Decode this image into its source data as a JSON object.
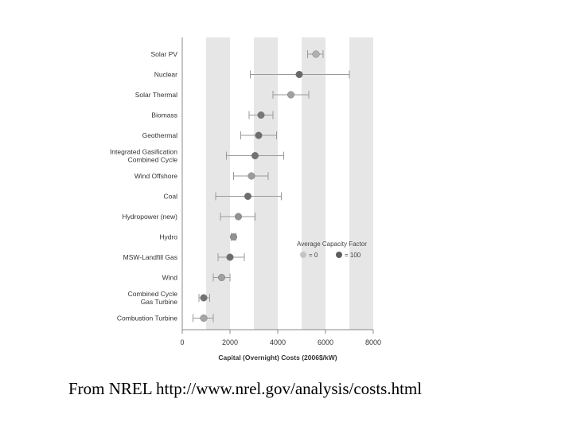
{
  "caption": "From NREL http://www.nrel.gov/analysis/costs.html",
  "colors": {
    "band": "#e6e6e6",
    "axis": "#888888",
    "whisker": "#999999",
    "light_point": "#c4c4c4",
    "dark_point": "#5e5e5e"
  },
  "chart_data": {
    "type": "scatter",
    "title": "",
    "xlabel": "Capital (Overnight) Costs (2006$/kW)",
    "ylabel": "",
    "xlim": [
      0,
      8000
    ],
    "xticks": [
      0,
      2000,
      4000,
      6000,
      8000
    ],
    "x_tick_labels": [
      "0",
      "2000",
      "4000",
      "6000",
      "8000"
    ],
    "grid": "alternating vertical bands",
    "legend": {
      "title": "Average Capacity Factor",
      "placement": "right-middle",
      "items": [
        {
          "label": "= 0",
          "style": "light"
        },
        {
          "label": "= 100",
          "style": "dark"
        }
      ]
    },
    "categories": [
      {
        "label": [
          "Solar PV"
        ],
        "mean": 5600,
        "low": 5250,
        "high": 5900,
        "capacity_factor": 20
      },
      {
        "label": [
          "Nuclear"
        ],
        "mean": 4900,
        "low": 2850,
        "high": 7000,
        "capacity_factor": 90
      },
      {
        "label": [
          "Solar Thermal"
        ],
        "mean": 4550,
        "low": 3800,
        "high": 5300,
        "capacity_factor": 35
      },
      {
        "label": [
          "Biomass"
        ],
        "mean": 3300,
        "low": 2800,
        "high": 3800,
        "capacity_factor": 75
      },
      {
        "label": [
          "Geothermal"
        ],
        "mean": 3200,
        "low": 2450,
        "high": 3950,
        "capacity_factor": 85
      },
      {
        "label": [
          "Integrated Gasification",
          "Combined Cycle"
        ],
        "mean": 3050,
        "low": 1850,
        "high": 4250,
        "capacity_factor": 80
      },
      {
        "label": [
          "Wind Offshore"
        ],
        "mean": 2900,
        "low": 2150,
        "high": 3600,
        "capacity_factor": 40
      },
      {
        "label": [
          "Coal"
        ],
        "mean": 2750,
        "low": 1400,
        "high": 4150,
        "capacity_factor": 85
      },
      {
        "label": [
          "Hydropower (new)"
        ],
        "mean": 2350,
        "low": 1600,
        "high": 3050,
        "capacity_factor": 50
      },
      {
        "label": [
          "Hydro"
        ],
        "mean": 2150,
        "low": 2050,
        "high": 2250,
        "capacity_factor": 50
      },
      {
        "label": [
          "MSW-Landfill Gas"
        ],
        "mean": 2000,
        "low": 1500,
        "high": 2600,
        "capacity_factor": 85
      },
      {
        "label": [
          "Wind"
        ],
        "mean": 1650,
        "low": 1300,
        "high": 2000,
        "capacity_factor": 35
      },
      {
        "label": [
          "Combined Cycle",
          "Gas Turbine"
        ],
        "mean": 900,
        "low": 700,
        "high": 1150,
        "capacity_factor": 80
      },
      {
        "label": [
          "Combustion Turbine"
        ],
        "mean": 900,
        "low": 450,
        "high": 1300,
        "capacity_factor": 30
      }
    ]
  }
}
